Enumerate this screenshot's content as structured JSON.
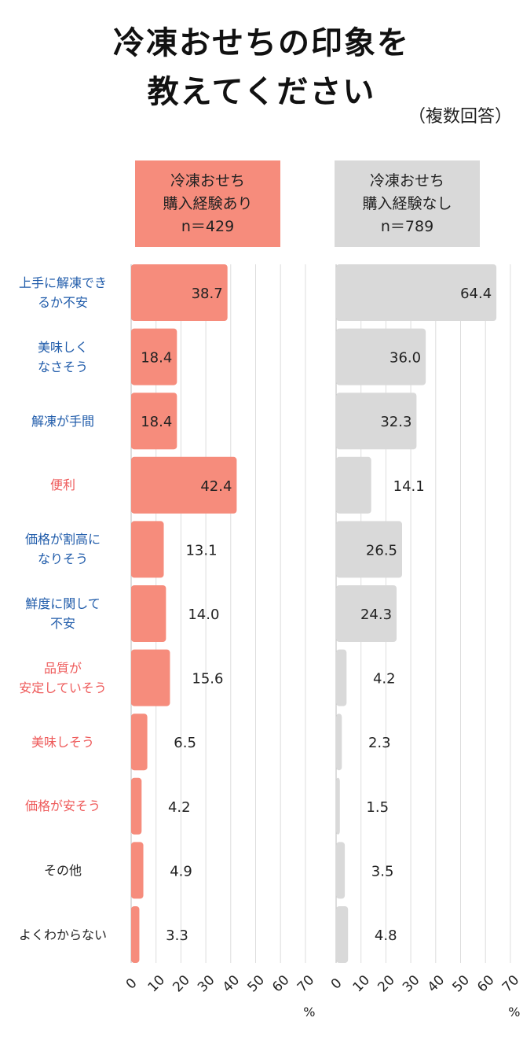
{
  "title_lines": [
    "冷凍おせちの印象を",
    "教えてください"
  ],
  "note": "（複数回答）",
  "chart_data": [
    {
      "type": "bar",
      "orientation": "horizontal",
      "header": [
        "冷凍おせち",
        "購入経験あり",
        "n＝429"
      ],
      "color": "#F68C7C",
      "categories": [
        "上手に解凍できるか不安",
        "美味しくなさそう",
        "解凍が手間",
        "便利",
        "価格が割高になりそう",
        "鮮度に関して不安",
        "品質が安定していそう",
        "美味しそう",
        "価格が安そう",
        "その他",
        "よくわからない"
      ],
      "values": [
        38.7,
        18.4,
        18.4,
        42.4,
        13.1,
        14.0,
        15.6,
        6.5,
        4.2,
        4.9,
        3.3
      ],
      "value_labels": [
        "38.7",
        "18.4",
        "18.4",
        "42.4",
        "13.1",
        "14.0",
        "15.6",
        "6.5",
        "4.2",
        "4.9",
        "3.3"
      ],
      "xlim": [
        0,
        70
      ],
      "xticks": [
        "0",
        "10",
        "20",
        "30",
        "40",
        "50",
        "60",
        "70"
      ],
      "xlabel": "%",
      "grid": true
    },
    {
      "type": "bar",
      "orientation": "horizontal",
      "header": [
        "冷凍おせち",
        "購入経験なし",
        "n＝789"
      ],
      "color": "#D9D9D9",
      "categories": [
        "上手に解凍できるか不安",
        "美味しくなさそう",
        "解凍が手間",
        "便利",
        "価格が割高になりそう",
        "鮮度に関して不安",
        "品質が安定していそう",
        "美味しそう",
        "価格が安そう",
        "その他",
        "よくわからない"
      ],
      "values": [
        64.4,
        36.0,
        32.3,
        14.1,
        26.5,
        24.3,
        4.2,
        2.3,
        1.5,
        3.5,
        4.8
      ],
      "value_labels": [
        "64.4",
        "36.0",
        "32.3",
        "14.1",
        "26.5",
        "24.3",
        "4.2",
        "2.3",
        "1.5",
        "3.5",
        "4.8"
      ],
      "xlim": [
        0,
        70
      ],
      "xticks": [
        "0",
        "10",
        "20",
        "30",
        "40",
        "50",
        "60",
        "70"
      ],
      "xlabel": "%",
      "grid": true
    }
  ],
  "category_display": [
    {
      "lines": [
        "上手に解凍でき",
        "るか不安"
      ],
      "color": "#1F5BAA"
    },
    {
      "lines": [
        "美味しく",
        "なさそう"
      ],
      "color": "#1F5BAA"
    },
    {
      "lines": [
        "解凍が手間"
      ],
      "color": "#1F5BAA"
    },
    {
      "lines": [
        "便利"
      ],
      "color": "#EE5A5A"
    },
    {
      "lines": [
        "価格が割高に",
        "なりそう"
      ],
      "color": "#1F5BAA"
    },
    {
      "lines": [
        "鮮度に関して",
        "不安"
      ],
      "color": "#1F5BAA"
    },
    {
      "lines": [
        "品質が",
        "安定していそう"
      ],
      "color": "#EE5A5A"
    },
    {
      "lines": [
        "美味しそう"
      ],
      "color": "#EE5A5A"
    },
    {
      "lines": [
        "価格が安そう"
      ],
      "color": "#EE5A5A"
    },
    {
      "lines": [
        "その他"
      ],
      "color": "#222222"
    },
    {
      "lines": [
        "よくわからない"
      ],
      "color": "#222222"
    }
  ]
}
